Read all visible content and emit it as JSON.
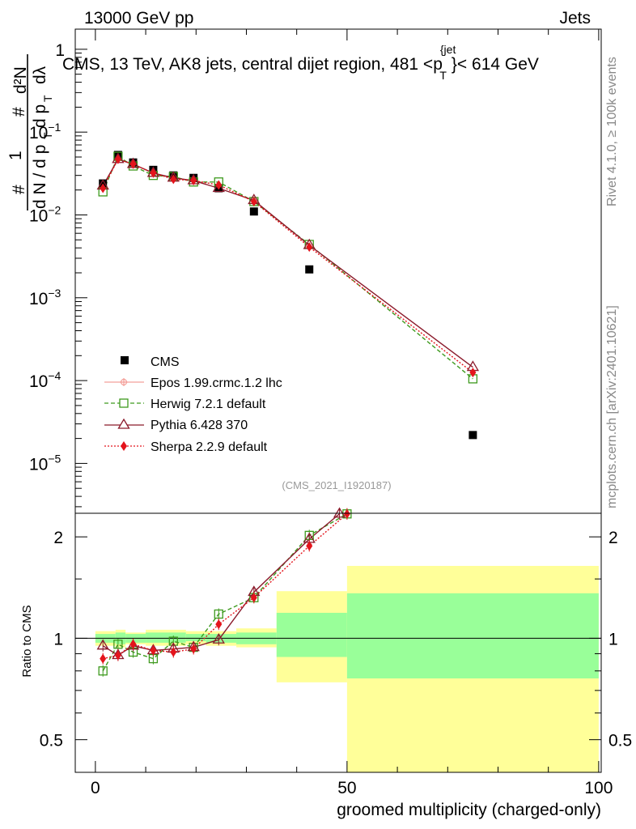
{
  "header": {
    "left": "13000 GeV pp",
    "right": "Jets"
  },
  "side_labels": {
    "top": "Rivet 4.1.0, ≥ 100k events",
    "bottom": "mcplots.cern.ch [arXiv:2401.10621]"
  },
  "watermark": "(CMS_2021_I1920187)",
  "chart_data": [
    {
      "type": "scatter",
      "title": "CMS, 13 TeV, AK8 jets, central dijet region, 481 <p_T^{jet}< 614 GeV",
      "title_parts": {
        "main": "CMS, 13 TeV, AK8 jets, central dijet region, 481 <p",
        "sup": "{jet",
        "sub": "T",
        "tail": "}< 614 GeV"
      },
      "ylabel_parts": {
        "one": "1",
        "hash1": "#",
        "dN": "d N / d p",
        "T1": "T",
        "hash2": "#",
        "d2N": "d²N",
        "dpT": "d p",
        "T2": "T",
        "dlam": "dλ"
      },
      "yscale": "log",
      "ylim": [
        2.5e-06,
        1.75
      ],
      "xlim": [
        -4,
        100.5
      ],
      "yticks": [
        {
          "v": 1,
          "label": "1",
          "exp": ""
        },
        {
          "v": 0.1,
          "label": "10",
          "exp": "−1"
        },
        {
          "v": 0.01,
          "label": "10",
          "exp": "−2"
        },
        {
          "v": 0.001,
          "label": "10",
          "exp": "−3"
        },
        {
          "v": 0.0001,
          "label": "10",
          "exp": "−4"
        },
        {
          "v": 1e-05,
          "label": "10",
          "exp": "−5"
        }
      ],
      "series": [
        {
          "name": "CMS",
          "marker": "square",
          "color": "#000000",
          "x": [
            1.5,
            4.5,
            7.5,
            11.5,
            15.5,
            19.5,
            24.5,
            31.5,
            42.5,
            75.0
          ],
          "y": [
            0.024,
            0.053,
            0.043,
            0.035,
            0.03,
            0.028,
            0.021,
            0.011,
            0.0022,
            2.2e-05
          ]
        },
        {
          "name": "Epos 1.99.crmc.1.2 lhc",
          "marker": "cross-circle",
          "color": "#f4a09a",
          "x": [],
          "y": []
        },
        {
          "name": "Herwig 7.2.1 default",
          "marker": "open-square",
          "color": "#3e9a1e",
          "x": [
            1.5,
            4.5,
            7.5,
            11.5,
            15.5,
            19.5,
            24.5,
            31.5,
            42.5,
            75.0
          ],
          "y": [
            0.019,
            0.051,
            0.039,
            0.03,
            0.029,
            0.025,
            0.025,
            0.0145,
            0.0044,
            0.000105
          ]
        },
        {
          "name": "Pythia 6.428 370",
          "marker": "open-triangle",
          "color": "#8b1a2b",
          "x": [
            1.5,
            4.5,
            7.5,
            11.5,
            15.5,
            19.5,
            24.5,
            31.5,
            42.5,
            75.0
          ],
          "y": [
            0.0225,
            0.047,
            0.041,
            0.032,
            0.028,
            0.026,
            0.021,
            0.015,
            0.0043,
            0.000145
          ]
        },
        {
          "name": "Sherpa 2.2.9 default",
          "marker": "diamond",
          "color": "#e4141c",
          "x": [
            1.5,
            4.5,
            7.5,
            11.5,
            15.5,
            19.5,
            24.5,
            31.5,
            42.5,
            75.0
          ],
          "y": [
            0.021,
            0.047,
            0.041,
            0.032,
            0.027,
            0.026,
            0.023,
            0.0145,
            0.0041,
            0.000125
          ]
        }
      ]
    },
    {
      "type": "scatter",
      "title": "",
      "ylabel": "Ratio to CMS",
      "xlabel": "groomed multiplicity (charged-only)",
      "yscale": "log",
      "ylim": [
        0.4,
        2.35
      ],
      "xlim": [
        -4,
        100.5
      ],
      "yticks": [
        0.5,
        1,
        2
      ],
      "xticks": [
        0,
        50,
        100
      ],
      "reference_line": 1,
      "bands": {
        "edges": [
          0,
          4,
          6,
          10,
          18,
          22,
          28,
          36,
          50,
          100
        ],
        "yellow_lo": [
          0.95,
          0.94,
          0.96,
          0.95,
          0.96,
          0.95,
          0.94,
          0.74,
          0.4
        ],
        "yellow_hi": [
          1.05,
          1.06,
          1.04,
          1.06,
          1.05,
          1.05,
          1.07,
          1.38,
          1.64
        ],
        "green_lo": [
          0.97,
          0.96,
          0.97,
          0.97,
          0.98,
          0.97,
          0.96,
          0.88,
          0.76
        ],
        "green_hi": [
          1.03,
          1.04,
          1.03,
          1.04,
          1.03,
          1.03,
          1.04,
          1.19,
          1.36
        ]
      },
      "series": [
        {
          "name": "Herwig 7.2.1 default",
          "x": [
            1.5,
            4.5,
            7.5,
            11.5,
            15.5,
            19.5,
            24.5,
            31.5,
            42.5,
            50.0
          ],
          "y": [
            0.8,
            0.96,
            0.91,
            0.87,
            0.98,
            0.94,
            1.18,
            1.32,
            2.02,
            2.34
          ]
        },
        {
          "name": "Pythia 6.428 370",
          "x": [
            1.5,
            4.5,
            7.5,
            11.5,
            15.5,
            19.5,
            24.5,
            31.5,
            42.5,
            48.5
          ],
          "y": [
            0.95,
            0.89,
            0.95,
            0.92,
            0.93,
            0.94,
            0.99,
            1.37,
            1.97,
            2.34
          ]
        },
        {
          "name": "Sherpa 2.2.9 default",
          "x": [
            1.5,
            4.5,
            7.5,
            11.5,
            15.5,
            19.5,
            24.5,
            31.5,
            42.5,
            50.0
          ],
          "y": [
            0.87,
            0.89,
            0.96,
            0.92,
            0.91,
            0.93,
            1.1,
            1.32,
            1.88,
            2.34
          ]
        }
      ]
    }
  ]
}
